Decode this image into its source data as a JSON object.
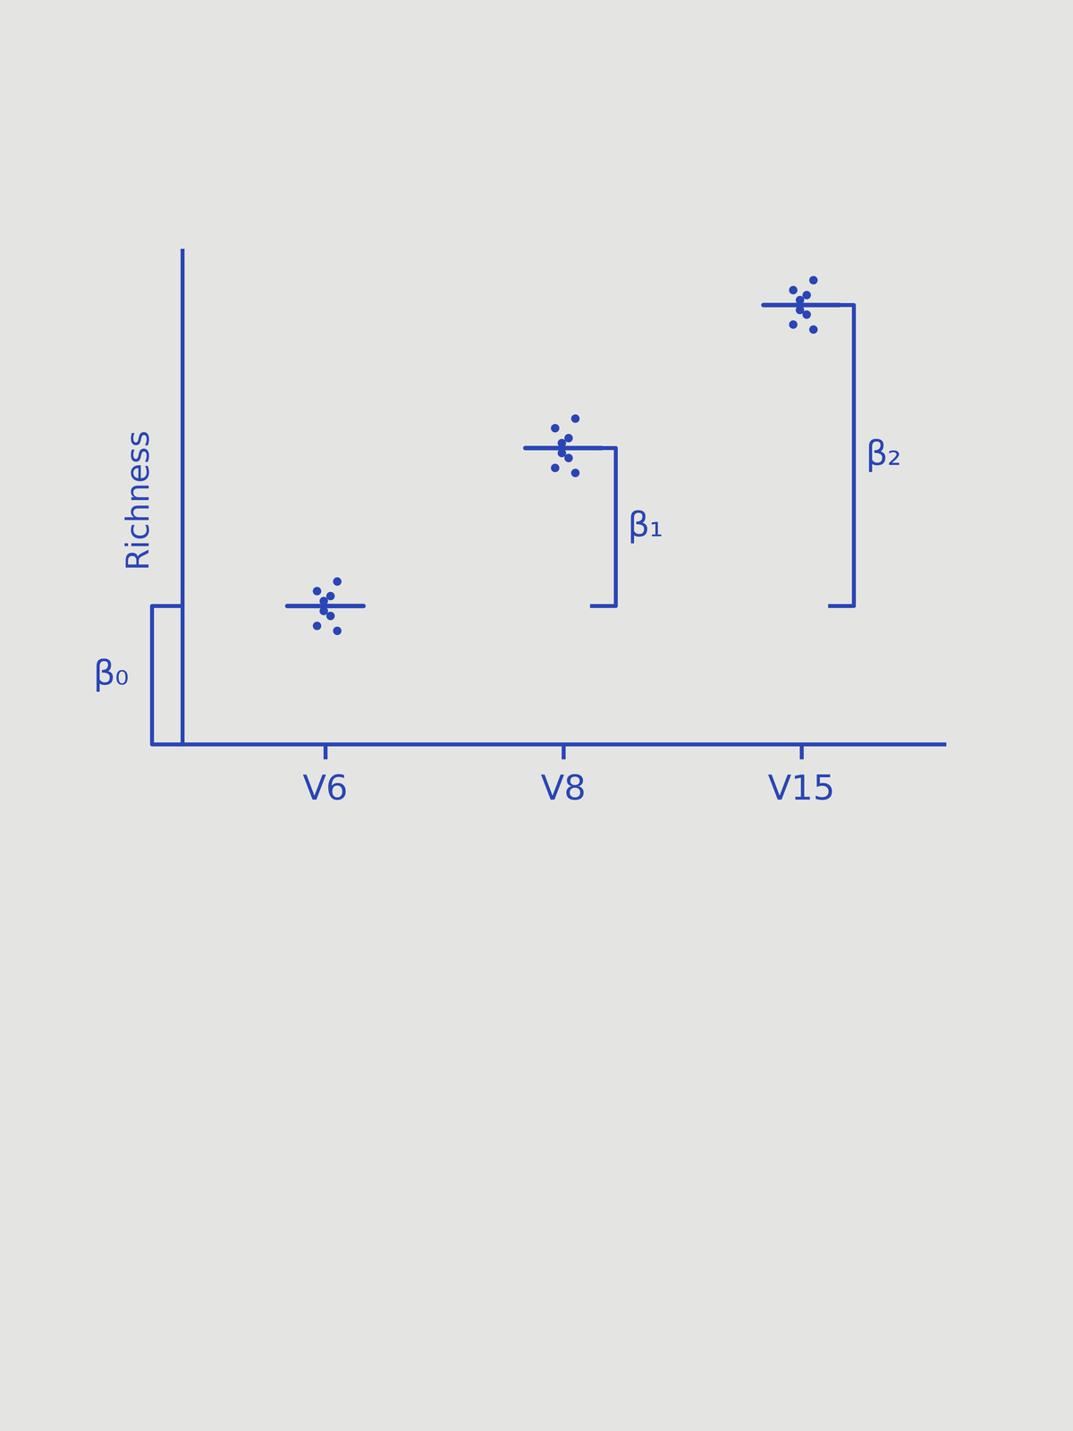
{
  "chart_data": {
    "type": "scatter",
    "y_label": "Richness",
    "categories": [
      "V6",
      "V8",
      "V15"
    ],
    "points": [
      [
        2.3,
        2.4,
        2.6,
        2.7,
        2.9,
        3.0,
        3.1,
        3.3
      ],
      [
        5.5,
        5.6,
        5.8,
        5.9,
        6.1,
        6.2,
        6.4,
        6.6
      ],
      [
        8.4,
        8.5,
        8.7,
        8.8,
        9.0,
        9.1,
        9.2,
        9.4
      ]
    ],
    "means": [
      2.8,
      6.0,
      8.9
    ],
    "brackets": [
      {
        "label": "β₀",
        "from": 0,
        "to": 2.8
      },
      {
        "label": "β₁",
        "category": "V8",
        "from": 2.8,
        "to": 6.0
      },
      {
        "label": "β₂",
        "category": "V15",
        "from": 2.8,
        "to": 8.9
      }
    ],
    "ylim": [
      0,
      10
    ],
    "yticks": [],
    "tick_labels": "x",
    "color": "#2a45b5",
    "marker": "o"
  }
}
